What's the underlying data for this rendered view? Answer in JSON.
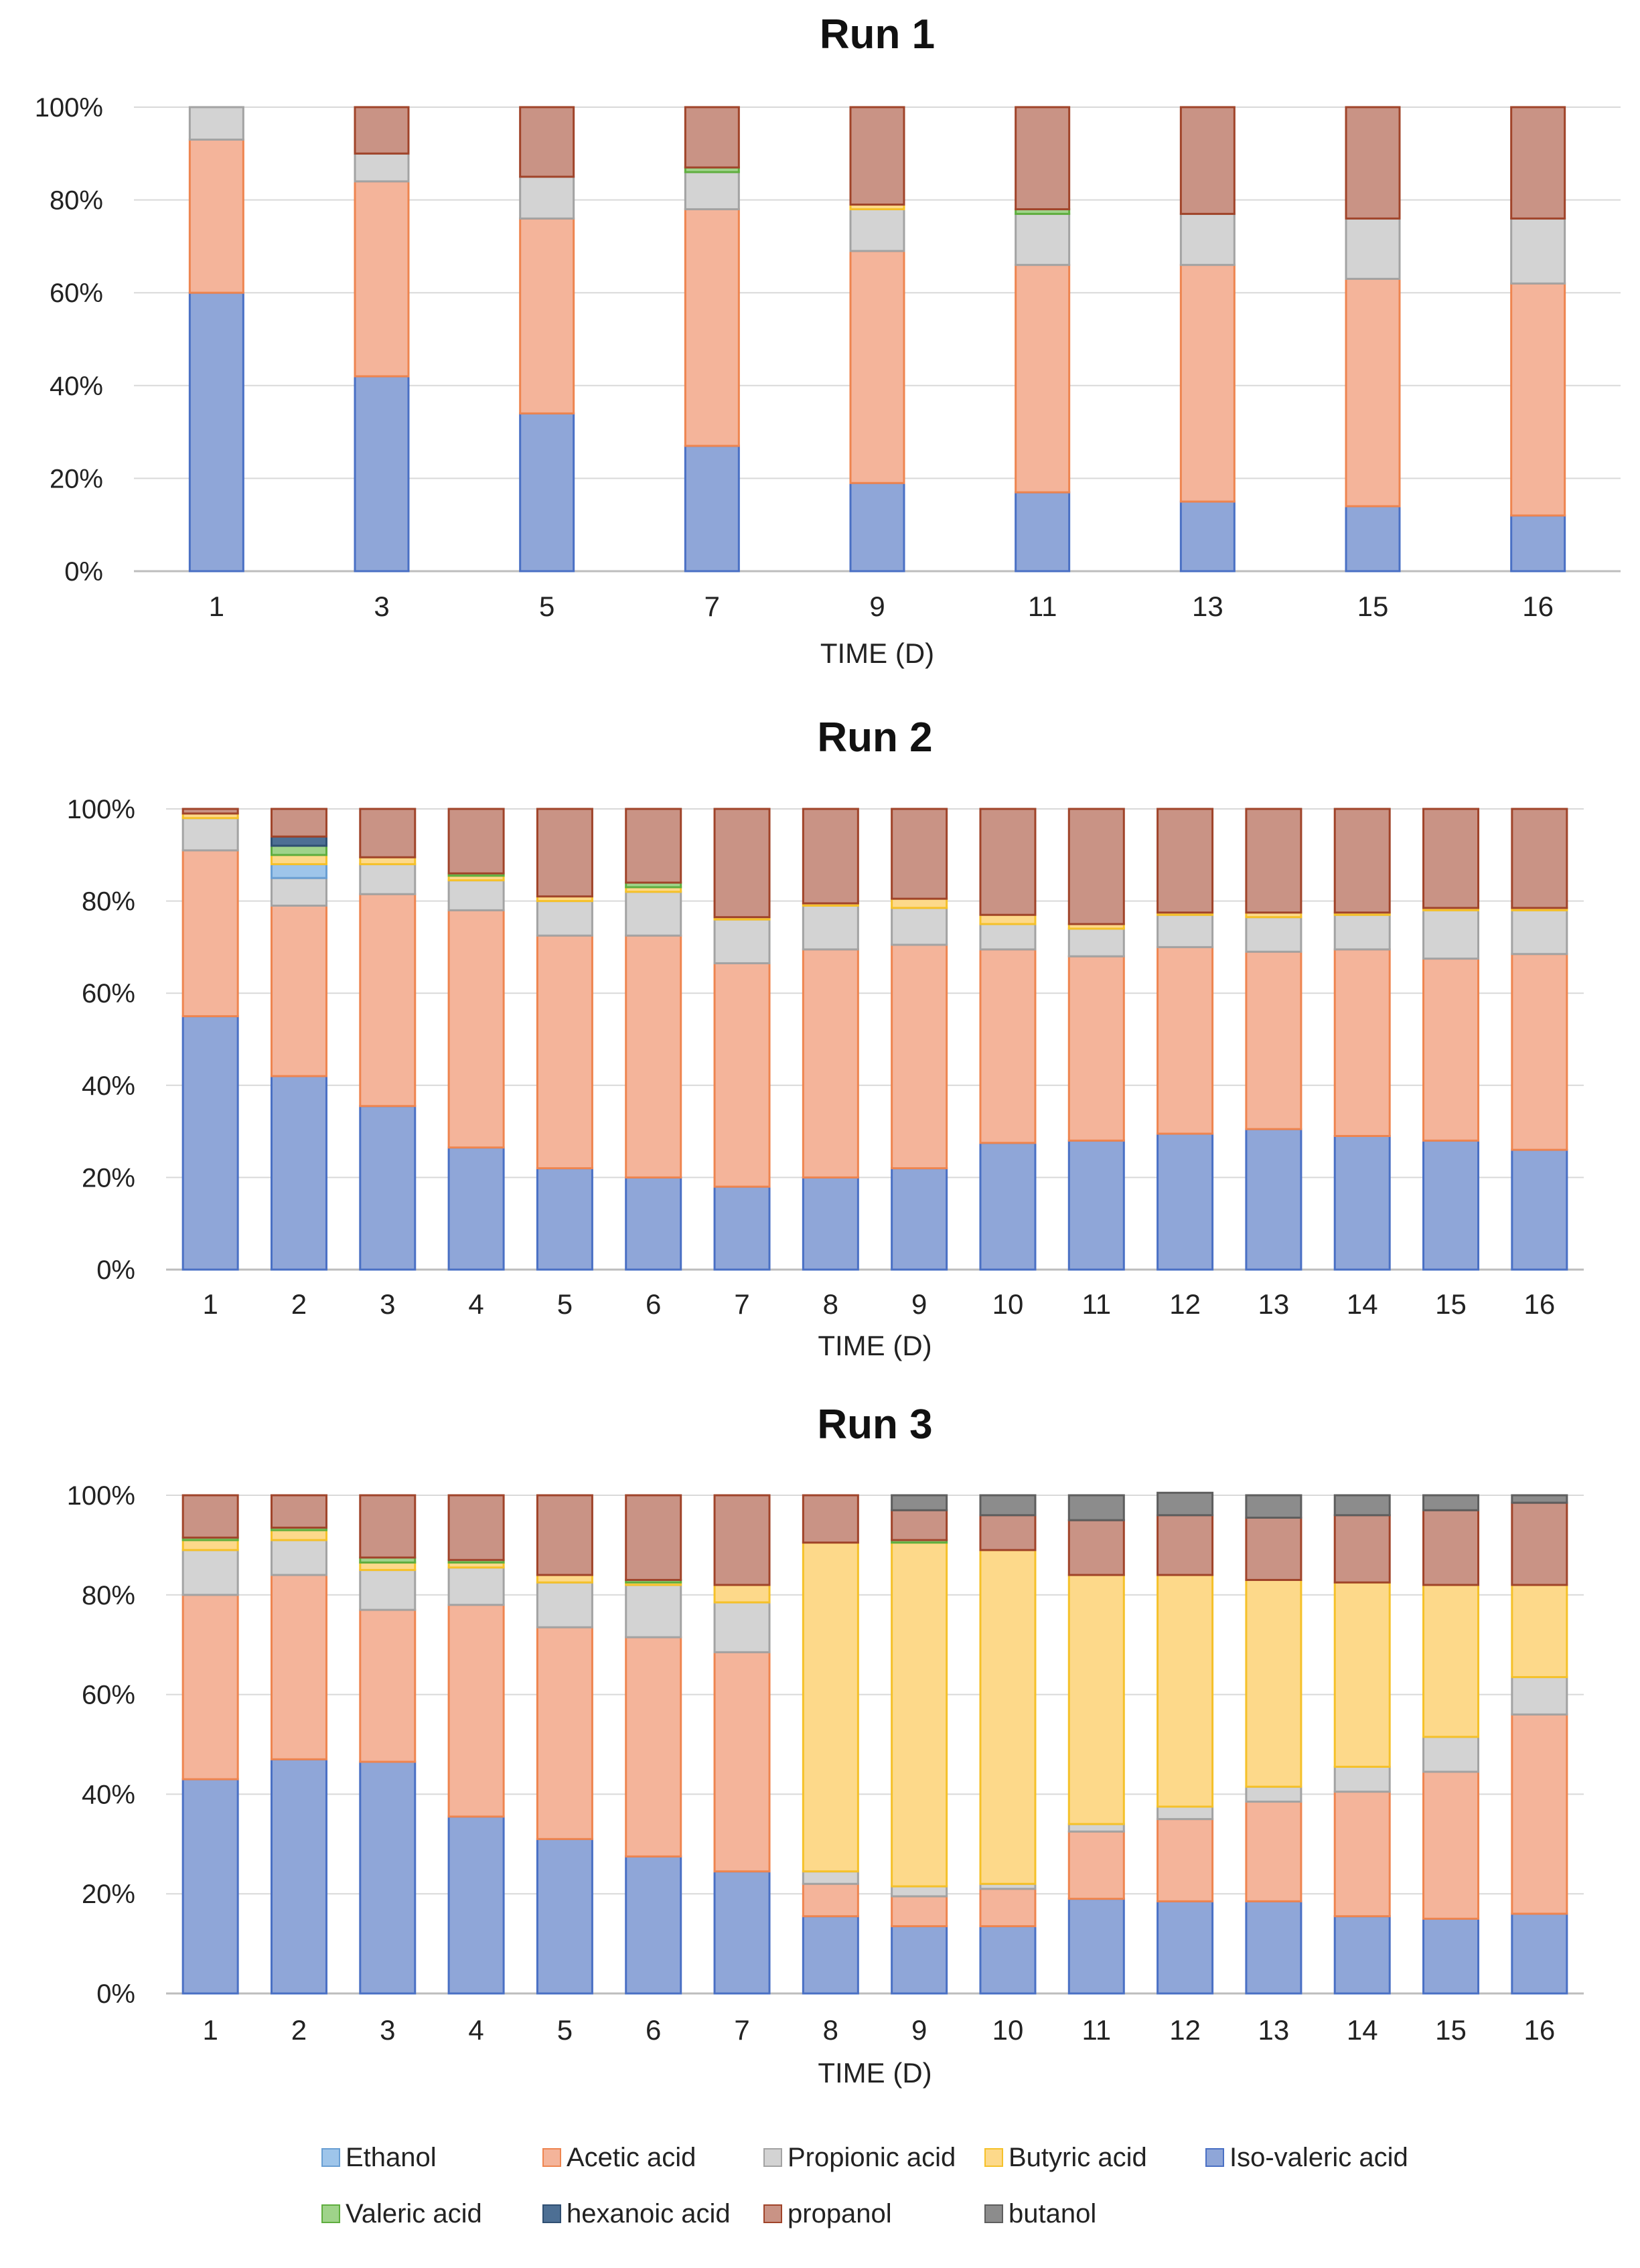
{
  "colors": {
    "Ethanol": "#9ec5ea",
    "Acetic acid": "#f4b49a",
    "Propionic acid": "#d3d3d3",
    "Butyric acid": "#fdd98a",
    "Iso-valeric acid": "#8fa6d8",
    "Valeric acid": "#9fd38a",
    "hexanoic acid": "#4d6f94",
    "propanol": "#c99385",
    "butanol": "#8c8c8c"
  },
  "strokes": {
    "Ethanol": "#6a9fd3",
    "Acetic acid": "#ee8550",
    "Propionic acid": "#a3a3a3",
    "Butyric acid": "#f5c12a",
    "Iso-valeric acid": "#4a70c4",
    "Valeric acid": "#5fae3f",
    "hexanoic acid": "#2f4f72",
    "propanol": "#a0442a",
    "butanol": "#5e5e5e"
  },
  "legend": [
    [
      "Ethanol",
      "Acetic acid",
      "Propionic acid",
      "Butyric acid",
      "Iso-valeric acid"
    ],
    [
      "Valeric acid",
      "hexanoic acid",
      "propanol",
      "butanol"
    ]
  ],
  "chart_data": [
    {
      "type": "bar",
      "stacked": true,
      "title": "Run 1",
      "xlabel": "TIME (D)",
      "ylabel": "",
      "ylim": [
        0,
        100
      ],
      "yticks": [
        "0%",
        "20%",
        "40%",
        "60%",
        "80%",
        "100%"
      ],
      "categories": [
        "1",
        "3",
        "5",
        "7",
        "9",
        "11",
        "13",
        "15",
        "16"
      ],
      "series": [
        {
          "name": "Iso-valeric acid",
          "values": [
            60,
            42,
            34,
            27,
            19,
            17,
            15,
            14,
            12
          ]
        },
        {
          "name": "Acetic acid",
          "values": [
            33,
            42,
            42,
            51,
            50,
            49,
            51,
            49,
            50
          ]
        },
        {
          "name": "Propionic acid",
          "values": [
            7,
            6,
            9,
            8,
            9,
            11,
            11,
            13,
            14
          ]
        },
        {
          "name": "Butyric acid",
          "values": [
            0,
            0,
            0,
            0,
            1,
            0,
            0,
            0,
            0
          ]
        },
        {
          "name": "Valeric acid",
          "values": [
            0,
            0,
            0,
            1,
            0,
            1,
            0,
            0,
            0
          ]
        },
        {
          "name": "propanol",
          "values": [
            0,
            10,
            15,
            13,
            21,
            22,
            23,
            24,
            24
          ]
        }
      ]
    },
    {
      "type": "bar",
      "stacked": true,
      "title": "Run 2",
      "xlabel": "TIME (D)",
      "ylabel": "",
      "ylim": [
        0,
        100
      ],
      "yticks": [
        "0%",
        "20%",
        "40%",
        "60%",
        "80%",
        "100%"
      ],
      "categories": [
        "1",
        "2",
        "3",
        "4",
        "5",
        "6",
        "7",
        "8",
        "9",
        "10",
        "11",
        "12",
        "13",
        "14",
        "15",
        "16"
      ],
      "series": [
        {
          "name": "Iso-valeric acid",
          "values": [
            55,
            42,
            35.5,
            26.5,
            22,
            20,
            18,
            20,
            22,
            27.5,
            28,
            29.5,
            30.5,
            29,
            28,
            26
          ]
        },
        {
          "name": "Acetic acid",
          "values": [
            36,
            37,
            46,
            51.5,
            50.5,
            52.5,
            48.5,
            49.5,
            48.5,
            42,
            40,
            40.5,
            38.5,
            40.5,
            39.5,
            42.5
          ]
        },
        {
          "name": "Propionic acid",
          "values": [
            7,
            6,
            6.5,
            6.5,
            7.5,
            9.5,
            9.5,
            9.5,
            8,
            5.5,
            6,
            7,
            7.5,
            7.5,
            10.5,
            9.5
          ]
        },
        {
          "name": "Ethanol",
          "values": [
            0,
            3,
            0,
            0,
            0,
            0,
            0,
            0,
            0,
            0,
            0,
            0,
            0,
            0,
            0,
            0
          ]
        },
        {
          "name": "Butyric acid",
          "values": [
            1,
            2,
            1.5,
            1,
            1,
            1,
            0.5,
            0.5,
            2,
            2,
            1,
            0.5,
            1,
            0.5,
            0.5,
            0.5
          ]
        },
        {
          "name": "Valeric acid",
          "values": [
            0,
            2,
            0,
            0.5,
            0,
            1,
            0,
            0,
            0,
            0,
            0,
            0,
            0,
            0,
            0,
            0
          ]
        },
        {
          "name": "hexanoic acid",
          "values": [
            0,
            2,
            0,
            0,
            0,
            0,
            0,
            0,
            0,
            0,
            0,
            0,
            0,
            0,
            0,
            0
          ]
        },
        {
          "name": "propanol",
          "values": [
            1,
            6,
            10.5,
            14,
            19,
            16,
            23.5,
            20.5,
            19.5,
            23,
            25,
            22.5,
            22.5,
            22.5,
            21.5,
            21.5
          ]
        }
      ]
    },
    {
      "type": "bar",
      "stacked": true,
      "title": "Run 3",
      "xlabel": "TIME (D)",
      "ylabel": "",
      "ylim": [
        0,
        100
      ],
      "yticks": [
        "0%",
        "20%",
        "40%",
        "60%",
        "80%",
        "100%"
      ],
      "categories": [
        "1",
        "2",
        "3",
        "4",
        "5",
        "6",
        "7",
        "8",
        "9",
        "10",
        "11",
        "12",
        "13",
        "14",
        "15",
        "16"
      ],
      "series": [
        {
          "name": "Iso-valeric acid",
          "values": [
            43,
            47,
            46.5,
            35.5,
            31,
            27.5,
            24.5,
            15.5,
            13.5,
            13.5,
            19,
            18.5,
            18.5,
            15.5,
            15,
            16
          ]
        },
        {
          "name": "Acetic acid",
          "values": [
            37,
            37,
            30.5,
            42.5,
            42.5,
            44,
            44,
            6.5,
            6,
            7.5,
            13.5,
            16.5,
            20,
            25,
            29.5,
            40
          ]
        },
        {
          "name": "Propionic acid",
          "values": [
            9,
            7,
            8,
            7.5,
            9,
            10.5,
            10,
            2.5,
            2,
            1,
            1.5,
            2.5,
            3,
            5,
            7,
            7.5
          ]
        },
        {
          "name": "Butyric acid",
          "values": [
            2,
            2,
            1.5,
            1,
            1.5,
            0.5,
            3.5,
            66,
            69,
            67,
            50,
            46.5,
            41.5,
            37,
            30.5,
            18.5
          ]
        },
        {
          "name": "Valeric acid",
          "values": [
            0.5,
            0.5,
            1,
            0.5,
            0,
            0.5,
            0,
            0,
            0.5,
            0,
            0,
            0,
            0,
            0,
            0,
            0
          ]
        },
        {
          "name": "propanol",
          "values": [
            8.5,
            6.5,
            12.5,
            13,
            16,
            17,
            18,
            9.5,
            6,
            7,
            11,
            12,
            12.5,
            13.5,
            15,
            16.5
          ]
        },
        {
          "name": "butanol",
          "values": [
            0,
            0,
            0,
            0,
            0,
            0,
            0,
            0,
            3,
            4,
            5,
            4.5,
            4.5,
            4,
            3,
            1.5
          ]
        }
      ]
    }
  ]
}
